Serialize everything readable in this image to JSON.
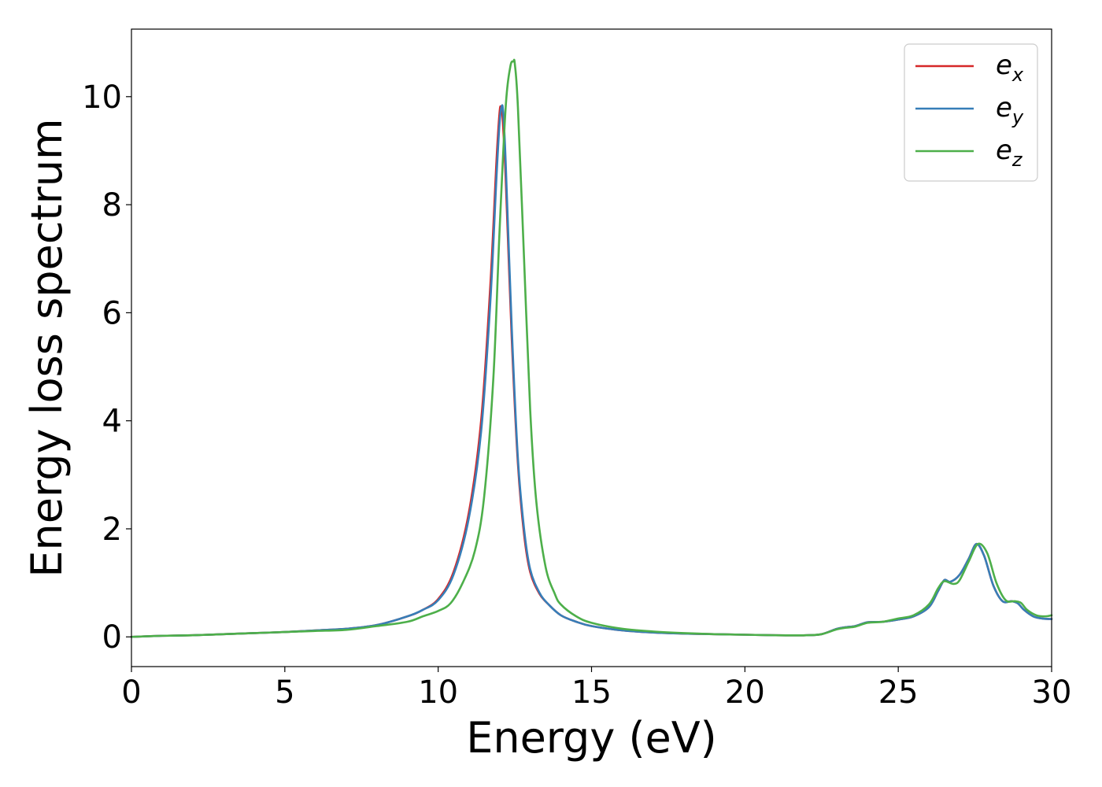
{
  "chart_data": {
    "type": "line",
    "title": "",
    "xlabel": "Energy (eV)",
    "ylabel": "Energy loss spectrum",
    "xlim": [
      0,
      30
    ],
    "ylim": [
      -0.55,
      11.25
    ],
    "xticks": [
      0,
      5,
      10,
      15,
      20,
      25,
      30
    ],
    "yticks": [
      0,
      2,
      4,
      6,
      8,
      10
    ],
    "xtick_labels": [
      "0",
      "5",
      "10",
      "15",
      "20",
      "25",
      "30"
    ],
    "ytick_labels": [
      "0",
      "2",
      "4",
      "6",
      "8",
      "10"
    ],
    "grid": false,
    "legend_position": "top-right",
    "series": [
      {
        "name": "e",
        "subscript": "x",
        "color": "#d62728",
        "x": [
          0,
          1,
          2,
          3,
          4,
          5,
          6,
          7,
          8,
          9,
          9.5,
          10,
          10.5,
          11,
          11.4,
          11.7,
          11.9,
          12.0,
          12.05,
          12.1,
          12.2,
          12.4,
          12.6,
          12.8,
          13.0,
          13.3,
          13.6,
          14,
          14.5,
          15,
          16,
          17,
          18,
          19,
          20,
          21,
          22,
          22.5,
          23,
          23.3,
          23.6,
          24,
          24.5,
          25,
          25.5,
          26,
          26.3,
          26.5,
          26.7,
          27,
          27.3,
          27.55,
          27.8,
          28.1,
          28.4,
          28.7,
          28.9,
          29.1,
          29.4,
          29.7,
          30
        ],
        "y": [
          0,
          0.02,
          0.03,
          0.05,
          0.07,
          0.09,
          0.12,
          0.15,
          0.22,
          0.38,
          0.5,
          0.7,
          1.2,
          2.3,
          4.0,
          6.5,
          8.8,
          9.7,
          9.8,
          9.6,
          8.5,
          5.5,
          3.2,
          1.9,
          1.2,
          0.8,
          0.6,
          0.4,
          0.28,
          0.2,
          0.12,
          0.08,
          0.06,
          0.05,
          0.04,
          0.03,
          0.03,
          0.05,
          0.15,
          0.18,
          0.2,
          0.27,
          0.28,
          0.32,
          0.38,
          0.55,
          0.85,
          1.05,
          1.02,
          1.15,
          1.45,
          1.72,
          1.5,
          0.95,
          0.66,
          0.66,
          0.62,
          0.5,
          0.38,
          0.34,
          0.33
        ]
      },
      {
        "name": "e",
        "subscript": "y",
        "color": "#377eb8",
        "x": [
          0,
          1,
          2,
          3,
          4,
          5,
          6,
          7,
          8,
          9,
          9.5,
          10,
          10.5,
          11,
          11.4,
          11.7,
          11.9,
          12.0,
          12.07,
          12.12,
          12.2,
          12.4,
          12.6,
          12.8,
          13.0,
          13.3,
          13.6,
          14,
          14.5,
          15,
          16,
          17,
          18,
          19,
          20,
          21,
          22,
          22.5,
          23,
          23.3,
          23.6,
          24,
          24.5,
          25,
          25.5,
          26,
          26.3,
          26.5,
          26.7,
          27,
          27.3,
          27.55,
          27.8,
          28.1,
          28.4,
          28.7,
          28.9,
          29.1,
          29.4,
          29.7,
          30
        ],
        "y": [
          0,
          0.02,
          0.03,
          0.05,
          0.07,
          0.09,
          0.12,
          0.15,
          0.22,
          0.38,
          0.5,
          0.68,
          1.15,
          2.2,
          3.8,
          6.2,
          8.5,
          9.5,
          9.82,
          9.7,
          8.8,
          5.7,
          3.3,
          2.0,
          1.25,
          0.82,
          0.6,
          0.4,
          0.28,
          0.2,
          0.12,
          0.08,
          0.06,
          0.05,
          0.04,
          0.03,
          0.03,
          0.05,
          0.15,
          0.18,
          0.2,
          0.27,
          0.28,
          0.32,
          0.38,
          0.55,
          0.85,
          1.05,
          1.02,
          1.15,
          1.45,
          1.72,
          1.5,
          0.95,
          0.66,
          0.66,
          0.62,
          0.5,
          0.38,
          0.34,
          0.33
        ]
      },
      {
        "name": "e",
        "subscript": "z",
        "color": "#4daf4a",
        "x": [
          0,
          1,
          2,
          3,
          4,
          5,
          6,
          7,
          8,
          9,
          9.5,
          10,
          10.4,
          10.8,
          11.2,
          11.5,
          11.8,
          12.0,
          12.2,
          12.35,
          12.45,
          12.5,
          12.6,
          12.8,
          13.0,
          13.2,
          13.5,
          13.8,
          14,
          14.5,
          15,
          16,
          17,
          18,
          19,
          20,
          21,
          22,
          22.5,
          23,
          23.3,
          23.6,
          24,
          24.5,
          25,
          25.5,
          26,
          26.3,
          26.5,
          26.8,
          27,
          27.3,
          27.6,
          27.9,
          28.2,
          28.5,
          28.8,
          29.0,
          29.2,
          29.5,
          29.8,
          30
        ],
        "y": [
          0,
          0.02,
          0.03,
          0.05,
          0.07,
          0.09,
          0.11,
          0.13,
          0.2,
          0.28,
          0.38,
          0.48,
          0.62,
          1.0,
          1.6,
          2.6,
          4.8,
          7.5,
          9.8,
          10.55,
          10.65,
          10.6,
          9.8,
          7.0,
          4.2,
          2.5,
          1.3,
          0.8,
          0.6,
          0.38,
          0.26,
          0.15,
          0.1,
          0.07,
          0.05,
          0.04,
          0.03,
          0.03,
          0.05,
          0.14,
          0.17,
          0.19,
          0.26,
          0.28,
          0.34,
          0.4,
          0.6,
          0.9,
          1.03,
          0.98,
          1.05,
          1.4,
          1.72,
          1.55,
          1.0,
          0.68,
          0.66,
          0.63,
          0.5,
          0.4,
          0.38,
          0.4
        ]
      }
    ]
  }
}
